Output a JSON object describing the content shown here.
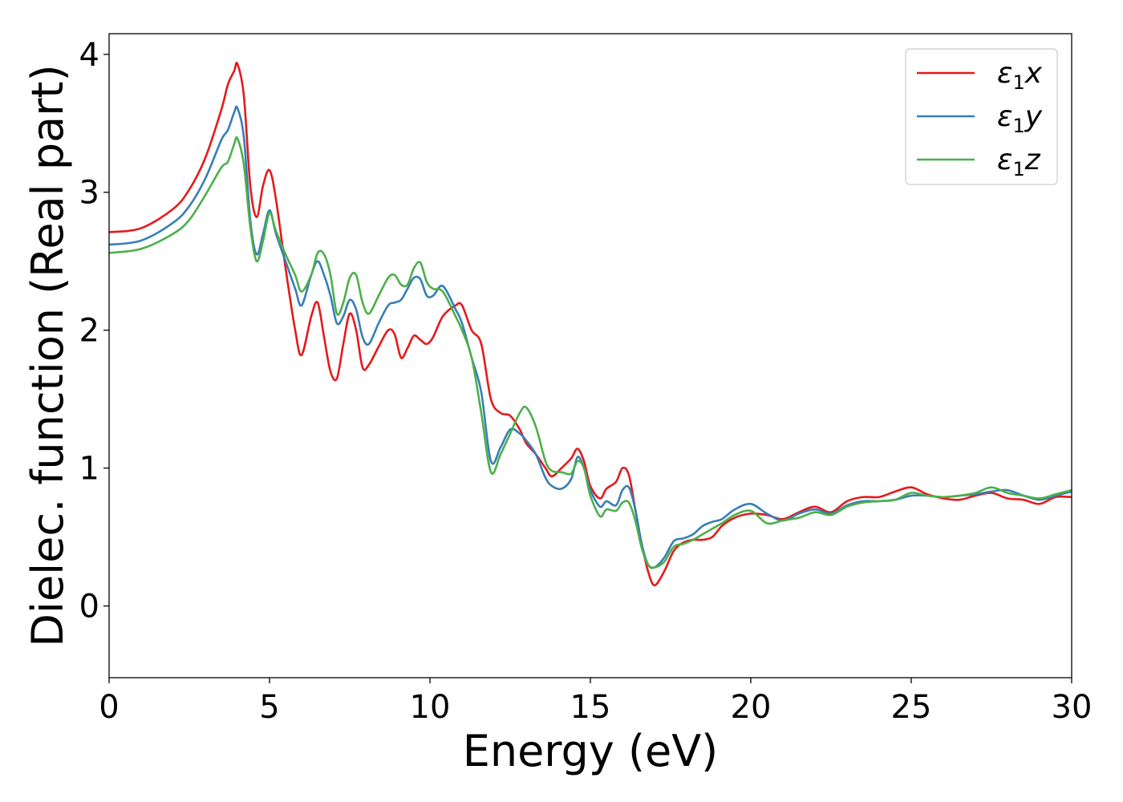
{
  "chart_data": {
    "type": "line",
    "xlabel": "Energy (eV)",
    "ylabel": "Dielec. function (Real part)",
    "xlim": [
      0,
      30
    ],
    "ylim": [
      -0.52,
      4.15
    ],
    "xticks": [
      0,
      5,
      10,
      15,
      20,
      25,
      30
    ],
    "xtick_labels": [
      "0",
      "5",
      "10",
      "15",
      "20",
      "25",
      "30"
    ],
    "yticks": [
      0,
      1,
      2,
      3,
      4
    ],
    "ytick_labels": [
      "0",
      "1",
      "2",
      "3",
      "4"
    ],
    "grid": false,
    "legend_position": "top-right",
    "series": [
      {
        "name": "ε1x",
        "legend": {
          "symbol": "ε",
          "sub": "1",
          "var": "x"
        },
        "color": "#e41a1c",
        "x": [
          0,
          1,
          2,
          2.5,
          3,
          3.5,
          3.7,
          3.9,
          4.0,
          4.2,
          4.4,
          4.6,
          4.8,
          5.0,
          5.2,
          5.5,
          5.8,
          6.0,
          6.3,
          6.5,
          6.7,
          6.9,
          7.1,
          7.3,
          7.5,
          7.7,
          7.9,
          8.1,
          8.4,
          8.7,
          8.9,
          9.1,
          9.3,
          9.5,
          9.7,
          9.9,
          10.1,
          10.4,
          10.8,
          11.0,
          11.3,
          11.6,
          11.9,
          12.2,
          12.5,
          12.8,
          13.0,
          13.3,
          13.6,
          13.8,
          14.1,
          14.4,
          14.6,
          14.8,
          15.0,
          15.3,
          15.5,
          15.8,
          16.0,
          16.2,
          16.4,
          16.6,
          16.8,
          17.0,
          17.3,
          17.6,
          17.9,
          18.2,
          18.5,
          18.8,
          19.1,
          19.5,
          20.0,
          20.5,
          21.0,
          21.5,
          22.0,
          22.5,
          23.0,
          23.5,
          24.0,
          24.5,
          25.0,
          25.5,
          26.0,
          26.5,
          27.0,
          27.5,
          28.0,
          28.5,
          29.0,
          29.5,
          30.0
        ],
        "y": [
          2.71,
          2.74,
          2.88,
          3.02,
          3.25,
          3.6,
          3.78,
          3.88,
          3.93,
          3.7,
          3.05,
          2.82,
          3.05,
          3.16,
          2.95,
          2.45,
          2.0,
          1.82,
          2.1,
          2.2,
          1.95,
          1.7,
          1.65,
          1.9,
          2.12,
          2.0,
          1.73,
          1.75,
          1.88,
          2.0,
          1.97,
          1.8,
          1.87,
          1.96,
          1.93,
          1.9,
          1.95,
          2.1,
          2.18,
          2.18,
          2.0,
          1.9,
          1.5,
          1.4,
          1.38,
          1.28,
          1.18,
          1.1,
          1.0,
          0.94,
          1.0,
          1.07,
          1.14,
          1.05,
          0.87,
          0.78,
          0.85,
          0.9,
          1.0,
          0.95,
          0.7,
          0.45,
          0.25,
          0.15,
          0.25,
          0.4,
          0.46,
          0.48,
          0.48,
          0.5,
          0.58,
          0.64,
          0.67,
          0.66,
          0.63,
          0.68,
          0.72,
          0.68,
          0.76,
          0.79,
          0.79,
          0.83,
          0.86,
          0.81,
          0.78,
          0.77,
          0.8,
          0.82,
          0.78,
          0.77,
          0.74,
          0.79,
          0.79
        ]
      },
      {
        "name": "ε1y",
        "legend": {
          "symbol": "ε",
          "sub": "1",
          "var": "y"
        },
        "color": "#377eb8",
        "x": [
          0,
          1,
          2,
          2.5,
          3,
          3.5,
          3.7,
          3.9,
          4.0,
          4.2,
          4.4,
          4.6,
          4.8,
          5.0,
          5.2,
          5.5,
          5.8,
          6.0,
          6.3,
          6.5,
          6.7,
          6.9,
          7.1,
          7.3,
          7.5,
          7.7,
          7.9,
          8.1,
          8.4,
          8.7,
          8.9,
          9.1,
          9.3,
          9.5,
          9.7,
          9.9,
          10.1,
          10.4,
          10.8,
          11.0,
          11.3,
          11.6,
          11.9,
          12.2,
          12.5,
          12.8,
          13.0,
          13.3,
          13.6,
          13.8,
          14.1,
          14.4,
          14.6,
          14.8,
          15.0,
          15.3,
          15.5,
          15.8,
          16.0,
          16.2,
          16.4,
          16.6,
          16.8,
          17.0,
          17.3,
          17.6,
          17.9,
          18.2,
          18.5,
          18.8,
          19.1,
          19.5,
          20.0,
          20.5,
          21.0,
          21.5,
          22.0,
          22.5,
          23.0,
          23.5,
          24.0,
          24.5,
          25.0,
          25.5,
          26.0,
          26.5,
          27.0,
          27.5,
          28.0,
          28.5,
          29.0,
          29.5,
          30.0
        ],
        "y": [
          2.62,
          2.65,
          2.78,
          2.9,
          3.1,
          3.38,
          3.45,
          3.58,
          3.61,
          3.4,
          2.8,
          2.55,
          2.7,
          2.87,
          2.7,
          2.5,
          2.3,
          2.18,
          2.4,
          2.5,
          2.4,
          2.25,
          2.05,
          2.1,
          2.22,
          2.15,
          1.95,
          1.9,
          2.05,
          2.18,
          2.2,
          2.22,
          2.3,
          2.38,
          2.37,
          2.25,
          2.25,
          2.32,
          2.15,
          2.05,
          1.8,
          1.55,
          1.05,
          1.15,
          1.28,
          1.25,
          1.2,
          1.1,
          0.93,
          0.87,
          0.85,
          0.92,
          1.08,
          1.0,
          0.84,
          0.72,
          0.76,
          0.73,
          0.84,
          0.86,
          0.7,
          0.45,
          0.3,
          0.28,
          0.35,
          0.47,
          0.49,
          0.52,
          0.58,
          0.61,
          0.63,
          0.7,
          0.74,
          0.67,
          0.62,
          0.67,
          0.7,
          0.67,
          0.73,
          0.76,
          0.76,
          0.77,
          0.8,
          0.8,
          0.79,
          0.8,
          0.81,
          0.83,
          0.84,
          0.8,
          0.77,
          0.8,
          0.83
        ]
      },
      {
        "name": "ε1z",
        "legend": {
          "symbol": "ε",
          "sub": "1",
          "var": "z"
        },
        "color": "#4daf4a",
        "x": [
          0,
          1,
          2,
          2.5,
          3,
          3.5,
          3.7,
          3.9,
          4.0,
          4.2,
          4.4,
          4.6,
          4.8,
          5.0,
          5.2,
          5.5,
          5.8,
          6.0,
          6.3,
          6.5,
          6.7,
          6.9,
          7.1,
          7.3,
          7.5,
          7.7,
          7.9,
          8.1,
          8.4,
          8.7,
          8.9,
          9.1,
          9.3,
          9.5,
          9.7,
          9.9,
          10.1,
          10.4,
          10.8,
          11.0,
          11.3,
          11.6,
          11.9,
          12.2,
          12.5,
          12.8,
          13.0,
          13.3,
          13.6,
          13.8,
          14.1,
          14.4,
          14.6,
          14.8,
          15.0,
          15.3,
          15.5,
          15.8,
          16.0,
          16.2,
          16.4,
          16.6,
          16.8,
          17.0,
          17.3,
          17.6,
          17.9,
          18.2,
          18.5,
          18.8,
          19.1,
          19.5,
          20.0,
          20.5,
          21.0,
          21.5,
          22.0,
          22.5,
          23.0,
          23.5,
          24.0,
          24.5,
          25.0,
          25.5,
          26.0,
          26.5,
          27.0,
          27.5,
          28.0,
          28.5,
          29.0,
          29.5,
          30.0
        ],
        "y": [
          2.56,
          2.59,
          2.7,
          2.8,
          2.98,
          3.18,
          3.22,
          3.35,
          3.39,
          3.2,
          2.75,
          2.5,
          2.65,
          2.85,
          2.72,
          2.55,
          2.4,
          2.28,
          2.4,
          2.56,
          2.55,
          2.4,
          2.12,
          2.2,
          2.38,
          2.4,
          2.2,
          2.12,
          2.25,
          2.38,
          2.4,
          2.33,
          2.33,
          2.45,
          2.49,
          2.35,
          2.3,
          2.28,
          2.1,
          2.0,
          1.8,
          1.4,
          0.97,
          1.1,
          1.25,
          1.4,
          1.44,
          1.3,
          1.05,
          0.98,
          0.97,
          0.96,
          1.05,
          1.0,
          0.8,
          0.65,
          0.7,
          0.69,
          0.75,
          0.75,
          0.62,
          0.42,
          0.3,
          0.28,
          0.32,
          0.43,
          0.45,
          0.48,
          0.52,
          0.56,
          0.6,
          0.66,
          0.69,
          0.6,
          0.62,
          0.64,
          0.68,
          0.66,
          0.72,
          0.75,
          0.76,
          0.77,
          0.82,
          0.8,
          0.79,
          0.8,
          0.82,
          0.86,
          0.82,
          0.8,
          0.78,
          0.81,
          0.84
        ]
      }
    ]
  }
}
